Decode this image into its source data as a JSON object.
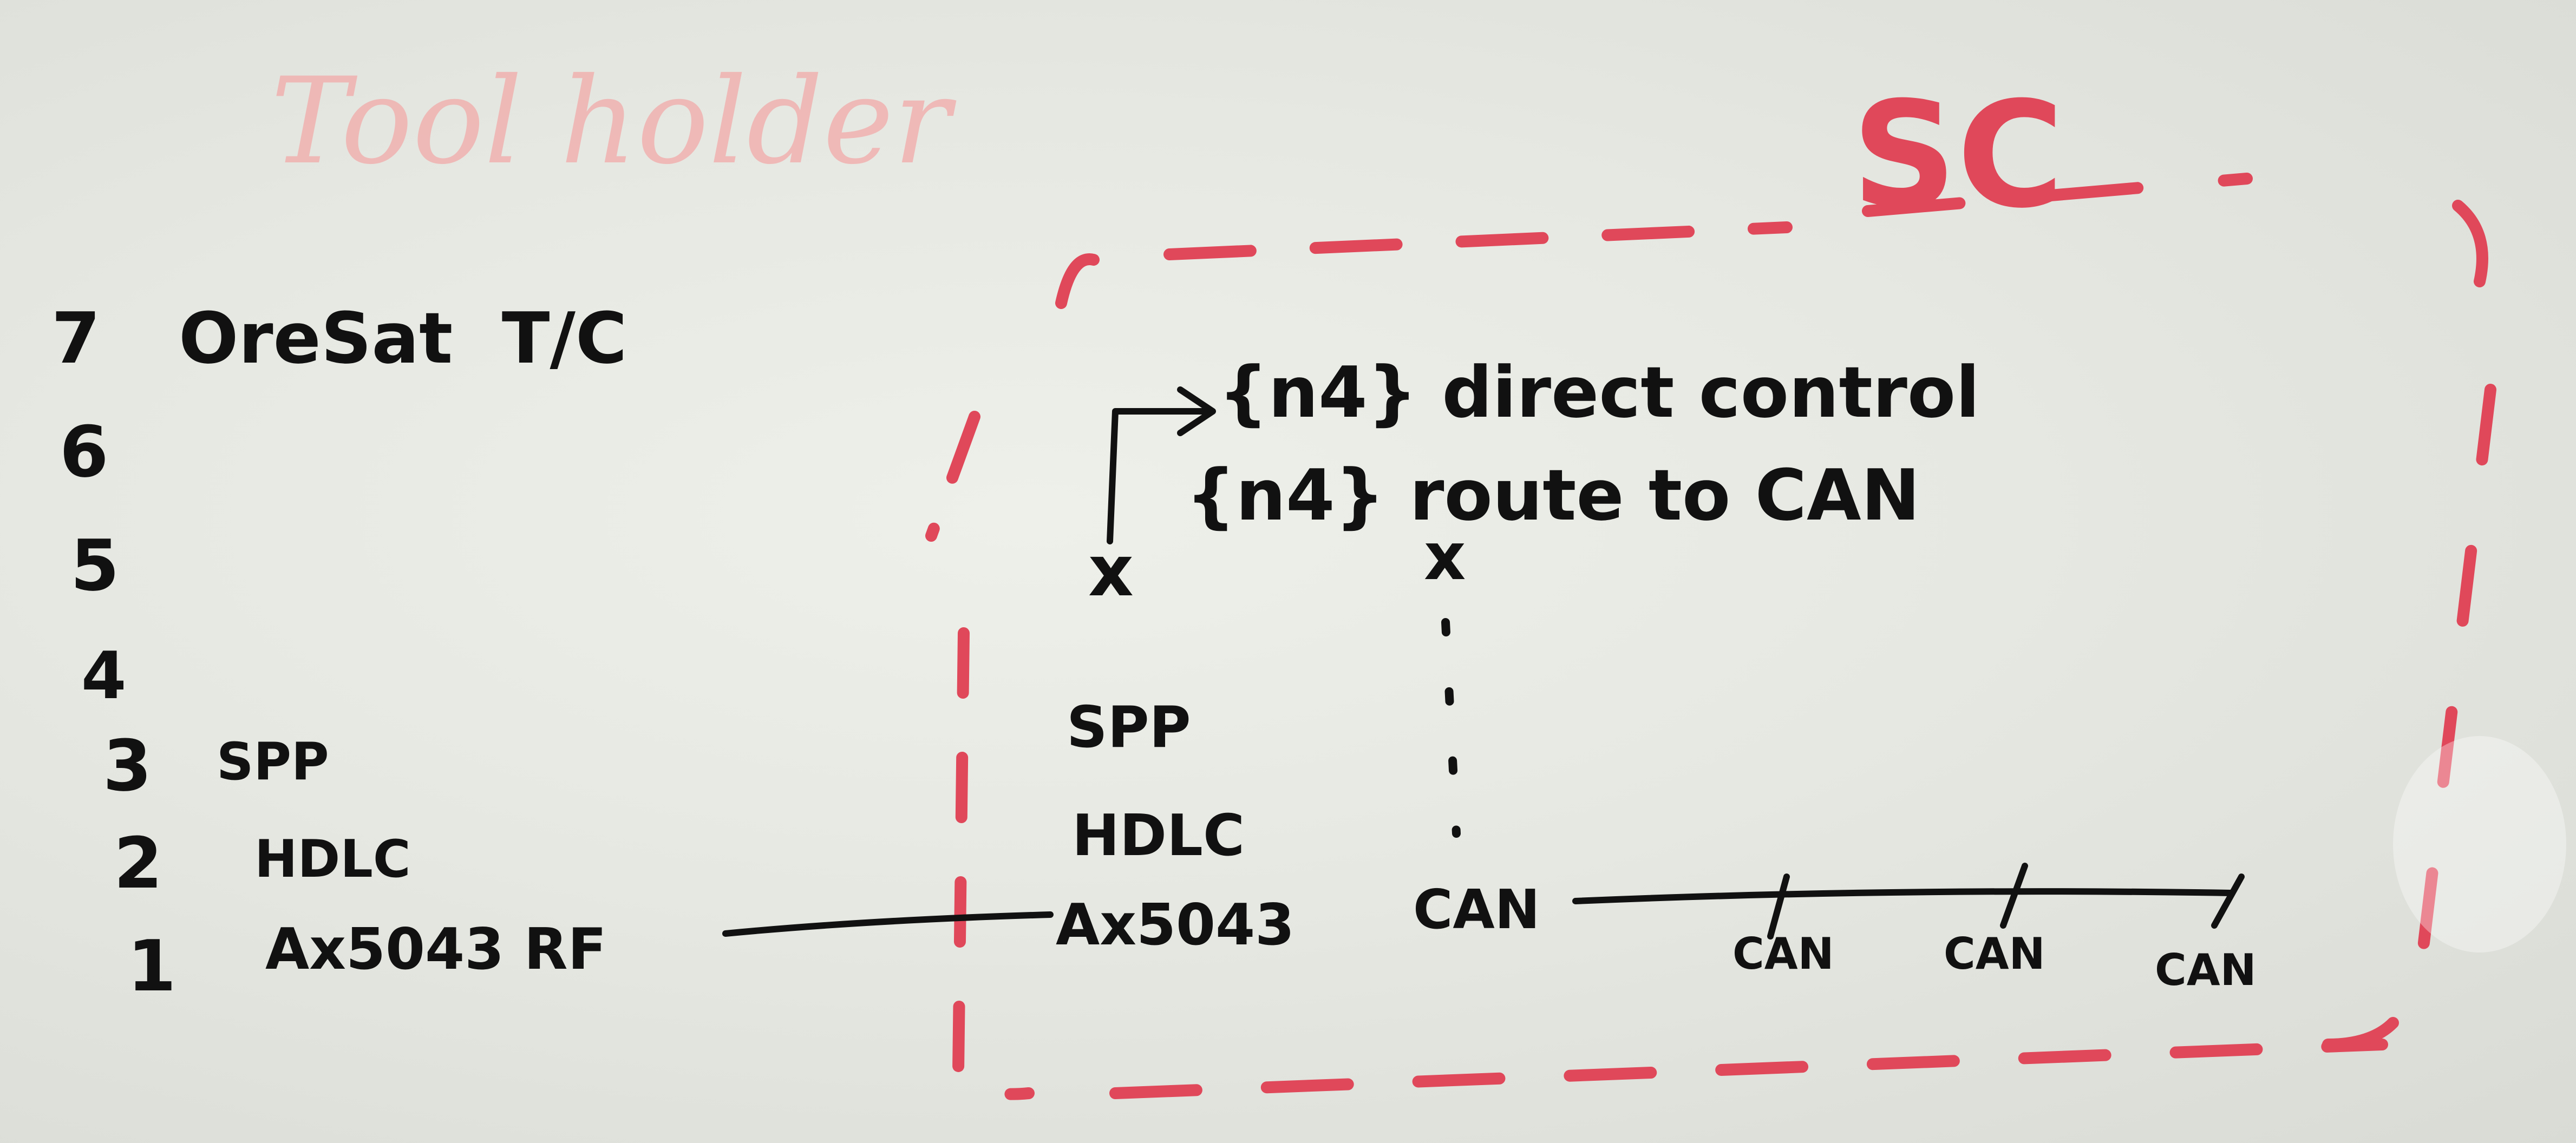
{
  "whiteboard": {
    "faded_title": "Tool holder",
    "box_label": "SC",
    "layers": [
      {
        "num": "7",
        "name": "OreSat  T/C"
      },
      {
        "num": "6",
        "name": ""
      },
      {
        "num": "5",
        "name": ""
      },
      {
        "num": "4",
        "name": ""
      },
      {
        "num": "3",
        "name": "SPP"
      },
      {
        "num": "2",
        "name": "HDLC"
      },
      {
        "num": "1",
        "name": "Ax5043 RF"
      }
    ],
    "stack": {
      "direct_control": "{n4} direct control",
      "route_to_can": "{n4} route to CAN",
      "x_left": "x",
      "x_right": "x",
      "spp": "SPP",
      "hdlc": "HDLC",
      "ax5043": "Ax5043",
      "can": "CAN"
    },
    "bus_nodes": [
      "CAN",
      "CAN",
      "CAN"
    ],
    "colors": {
      "ink": "#111111",
      "marker_red": "#e0485a",
      "faded_red": "#f2aaa9",
      "board": "#e6e8e2"
    }
  }
}
